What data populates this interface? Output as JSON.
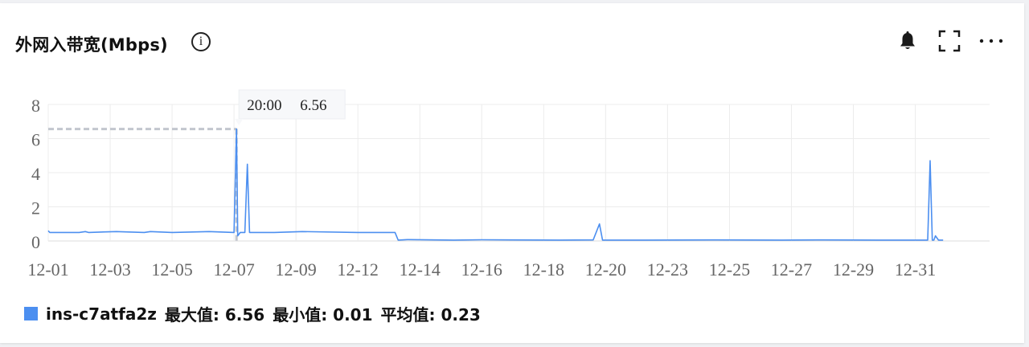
{
  "panel": {
    "title": "外网入带宽(Mbps)",
    "info_icon": "info-circle-icon",
    "actions": [
      {
        "name": "alarm",
        "icon": "bell-icon"
      },
      {
        "name": "fullscreen",
        "icon": "expand-icon"
      },
      {
        "name": "more",
        "icon": "more-dots-icon"
      }
    ]
  },
  "tooltip": {
    "time": "20:00",
    "value": "6.56"
  },
  "legend": {
    "series_name": "ins-c7atfa2z",
    "max_label": "最大值: 6.56",
    "min_label": "最小值: 0.01",
    "avg_label": "平均值: 0.23"
  },
  "chart_data": {
    "type": "line",
    "title": "外网入带宽(Mbps)",
    "xlabel": "",
    "ylabel": "",
    "ylim": [
      0,
      8
    ],
    "yticks": [
      0,
      2,
      4,
      6,
      8
    ],
    "x_range_days": [
      1,
      31.4
    ],
    "xticks": [
      {
        "label": "12-01",
        "day": 1
      },
      {
        "label": "12-03",
        "day": 3
      },
      {
        "label": "12-05",
        "day": 5
      },
      {
        "label": "12-07",
        "day": 7
      },
      {
        "label": "12-09",
        "day": 9
      },
      {
        "label": "12-12",
        "day": 11
      },
      {
        "label": "12-14",
        "day": 13
      },
      {
        "label": "12-16",
        "day": 15
      },
      {
        "label": "12-18",
        "day": 17
      },
      {
        "label": "12-20",
        "day": 19
      },
      {
        "label": "12-23",
        "day": 21
      },
      {
        "label": "12-25",
        "day": 23
      },
      {
        "label": "12-27",
        "day": 25
      },
      {
        "label": "12-29",
        "day": 27
      },
      {
        "label": "12-31",
        "day": 29
      }
    ],
    "grid": true,
    "color": "#4c8ff0",
    "series": [
      {
        "name": "ins-c7atfa2z",
        "points": [
          [
            1,
            0.6
          ],
          [
            1.05,
            0.5
          ],
          [
            2,
            0.5
          ],
          [
            2.2,
            0.55
          ],
          [
            2.3,
            0.5
          ],
          [
            3.2,
            0.55
          ],
          [
            4.1,
            0.5
          ],
          [
            4.3,
            0.55
          ],
          [
            5,
            0.5
          ],
          [
            6.2,
            0.55
          ],
          [
            7.0,
            0.5
          ],
          [
            7.08,
            6.56
          ],
          [
            7.12,
            0.3
          ],
          [
            7.2,
            0.5
          ],
          [
            7.35,
            0.5
          ],
          [
            7.43,
            4.5
          ],
          [
            7.5,
            0.5
          ],
          [
            8.3,
            0.5
          ],
          [
            9.2,
            0.55
          ],
          [
            11.0,
            0.5
          ],
          [
            12.2,
            0.5
          ],
          [
            12.3,
            0.05
          ],
          [
            12.6,
            0.08
          ],
          [
            14.1,
            0.05
          ],
          [
            15.0,
            0.07
          ],
          [
            17.5,
            0.05
          ],
          [
            18.6,
            0.06
          ],
          [
            18.8,
            1.0
          ],
          [
            18.9,
            0.05
          ],
          [
            20.3,
            0.05
          ],
          [
            22.5,
            0.06
          ],
          [
            24.7,
            0.05
          ],
          [
            26.0,
            0.06
          ],
          [
            27.8,
            0.05
          ],
          [
            28.8,
            0.05
          ],
          [
            29.4,
            0.05
          ],
          [
            29.48,
            4.7
          ],
          [
            29.55,
            0.05
          ],
          [
            29.6,
            0.05
          ],
          [
            29.65,
            0.3
          ],
          [
            29.75,
            0.05
          ],
          [
            29.9,
            0.05
          ]
        ]
      }
    ],
    "highlight": {
      "x": 7.08,
      "y": 6.56
    }
  }
}
